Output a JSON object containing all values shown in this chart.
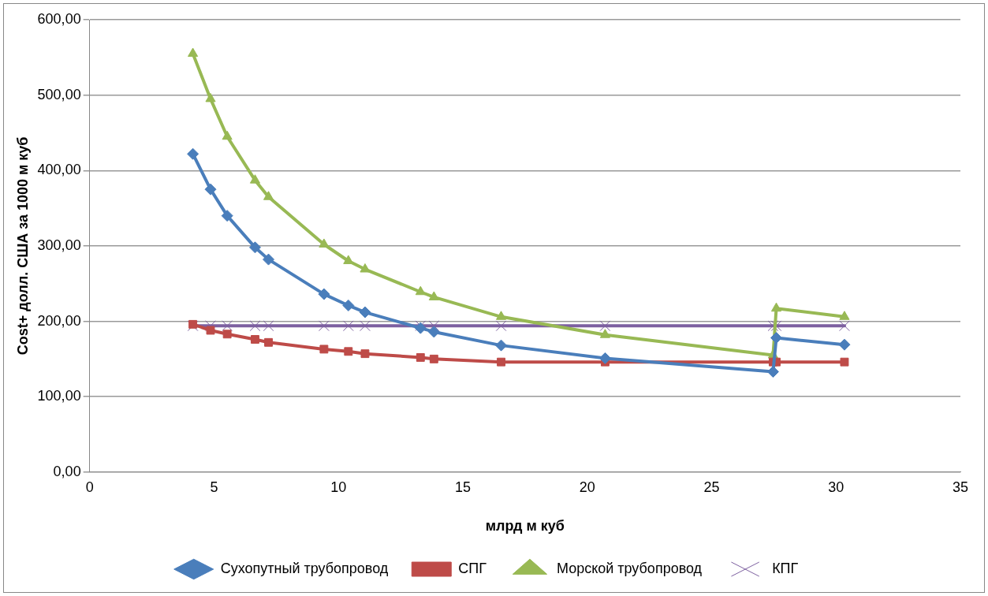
{
  "chart_data": {
    "type": "line",
    "xlabel": "млрд м куб",
    "ylabel": "Cost+ долл. США за 1000 м куб",
    "x": [
      4.15,
      4.86,
      5.53,
      6.65,
      7.19,
      9.42,
      10.4,
      11.07,
      13.3,
      13.84,
      16.54,
      20.72,
      27.47,
      27.6,
      30.34
    ],
    "xlim": [
      0,
      35
    ],
    "xticks": [
      0,
      5,
      10,
      15,
      20,
      25,
      30,
      35
    ],
    "ylim": [
      0,
      600
    ],
    "yticks": [
      {
        "value": 0,
        "label": "0,00"
      },
      {
        "value": 100,
        "label": "100,00"
      },
      {
        "value": 200,
        "label": "200,00"
      },
      {
        "value": 300,
        "label": "300,00"
      },
      {
        "value": 400,
        "label": "400,00"
      },
      {
        "value": 500,
        "label": "500,00"
      },
      {
        "value": 600,
        "label": "600,00"
      }
    ],
    "grid": "y",
    "legend": "bottom",
    "series": [
      {
        "name": "Сухопутный трубопровод",
        "color": "#4a7ebb",
        "marker": "diamond",
        "values": [
          422,
          375,
          340,
          298,
          282,
          236,
          221,
          212,
          191,
          186,
          168,
          151,
          133,
          178,
          169
        ]
      },
      {
        "name": "СПГ",
        "color": "#be4b48",
        "marker": "square",
        "values": [
          196,
          188,
          183,
          176,
          172,
          163,
          160,
          157,
          152,
          150,
          146,
          146,
          146,
          146,
          146
        ]
      },
      {
        "name": "Морской трубопровод",
        "color": "#98b954",
        "marker": "triangle",
        "values": [
          555,
          495,
          445,
          387,
          365,
          302,
          280,
          269,
          239,
          232,
          206,
          182,
          155,
          217,
          206
        ]
      },
      {
        "name": "КПГ",
        "color": "#7d60a0",
        "marker": "cross",
        "values": [
          194,
          194,
          194,
          194,
          194,
          194,
          194,
          194,
          194,
          194,
          194,
          194,
          194,
          194,
          194
        ]
      }
    ]
  }
}
